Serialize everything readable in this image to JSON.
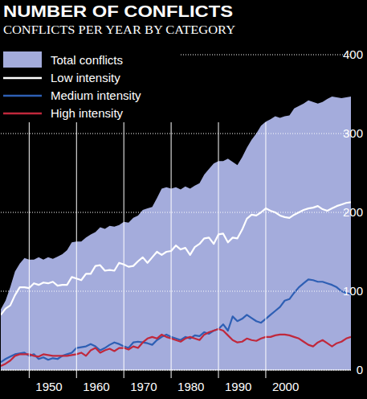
{
  "chart_data": {
    "type": "line",
    "title": "NUMBER OF CONFLICTS",
    "subtitle": "CONFLICTS PER YEAR BY CATEGORY",
    "x": [
      1944,
      1945,
      1946,
      1947,
      1948,
      1949,
      1950,
      1951,
      1952,
      1953,
      1954,
      1955,
      1956,
      1957,
      1958,
      1959,
      1960,
      1961,
      1962,
      1963,
      1964,
      1965,
      1966,
      1967,
      1968,
      1969,
      1970,
      1971,
      1972,
      1973,
      1974,
      1975,
      1976,
      1977,
      1978,
      1979,
      1980,
      1981,
      1982,
      1983,
      1984,
      1985,
      1986,
      1987,
      1988,
      1989,
      1990,
      1991,
      1992,
      1993,
      1994,
      1995,
      1996,
      1997,
      1998,
      1999,
      2000,
      2001,
      2002,
      2003,
      2004,
      2005,
      2006,
      2007,
      2008,
      2009,
      2010,
      2011,
      2012,
      2013,
      2014,
      2015,
      2016,
      2017,
      2018
    ],
    "xlim": [
      1944,
      2018
    ],
    "xticks": [
      1950,
      1960,
      1970,
      1980,
      1990,
      2000
    ],
    "ylim": [
      0,
      400
    ],
    "yticks": [
      0,
      100,
      200,
      300,
      400
    ],
    "grid": true,
    "legend": "top-left",
    "series": [
      {
        "name": "Total conflicts",
        "type": "area",
        "color": "#a4acdc",
        "values": [
          77,
          88,
          105,
          125,
          135,
          142,
          140,
          140,
          143,
          140,
          143,
          141,
          144,
          147,
          152,
          162,
          163,
          163,
          168,
          172,
          175,
          181,
          179,
          183,
          182,
          184,
          188,
          187,
          193,
          196,
          203,
          205,
          207,
          218,
          230,
          232,
          230,
          232,
          229,
          233,
          230,
          234,
          237,
          248,
          255,
          262,
          265,
          265,
          268,
          264,
          260,
          270,
          282,
          292,
          300,
          310,
          315,
          318,
          322,
          320,
          322,
          323,
          332,
          335,
          338,
          342,
          340,
          338,
          340,
          344,
          347,
          346,
          345,
          346,
          347
        ]
      },
      {
        "name": "Low intensity",
        "type": "line",
        "color": "#ffffff",
        "values": [
          70,
          78,
          82,
          95,
          105,
          105,
          104,
          110,
          108,
          111,
          110,
          112,
          107,
          108,
          108,
          118,
          116,
          114,
          122,
          122,
          132,
          133,
          126,
          127,
          126,
          136,
          134,
          131,
          132,
          138,
          143,
          136,
          143,
          150,
          146,
          150,
          151,
          158,
          153,
          155,
          146,
          156,
          160,
          167,
          168,
          160,
          172,
          173,
          162,
          168,
          167,
          178,
          192,
          197,
          196,
          200,
          205,
          202,
          200,
          196,
          194,
          193,
          197,
          200,
          203,
          205,
          206,
          208,
          204,
          202,
          205,
          208,
          210,
          212,
          213
        ]
      },
      {
        "name": "Medium intensity",
        "type": "line",
        "color": "#2e5fb4",
        "values": [
          10,
          14,
          17,
          20,
          21,
          22,
          18,
          20,
          14,
          16,
          13,
          15,
          14,
          18,
          20,
          22,
          28,
          29,
          30,
          33,
          30,
          25,
          28,
          32,
          35,
          33,
          30,
          28,
          35,
          36,
          35,
          34,
          32,
          38,
          42,
          45,
          42,
          40,
          38,
          42,
          40,
          44,
          43,
          48,
          46,
          50,
          52,
          58,
          50,
          68,
          62,
          65,
          70,
          66,
          62,
          60,
          65,
          70,
          75,
          80,
          88,
          90,
          98,
          105,
          110,
          115,
          114,
          112,
          112,
          110,
          108,
          105,
          100,
          98,
          96
        ]
      },
      {
        "name": "High intensity",
        "type": "line",
        "color": "#c0283c",
        "values": [
          5,
          8,
          12,
          18,
          20,
          20,
          20,
          18,
          17,
          20,
          19,
          18,
          18,
          18,
          18,
          19,
          20,
          22,
          18,
          25,
          28,
          22,
          25,
          27,
          24,
          28,
          28,
          26,
          30,
          28,
          35,
          40,
          42,
          40,
          45,
          42,
          40,
          38,
          36,
          40,
          42,
          40,
          38,
          45,
          48,
          50,
          52,
          50,
          44,
          38,
          35,
          36,
          40,
          38,
          37,
          40,
          42,
          42,
          44,
          45,
          45,
          44,
          42,
          40,
          36,
          32,
          30,
          35,
          38,
          34,
          30,
          34,
          36,
          40,
          42
        ]
      }
    ]
  }
}
